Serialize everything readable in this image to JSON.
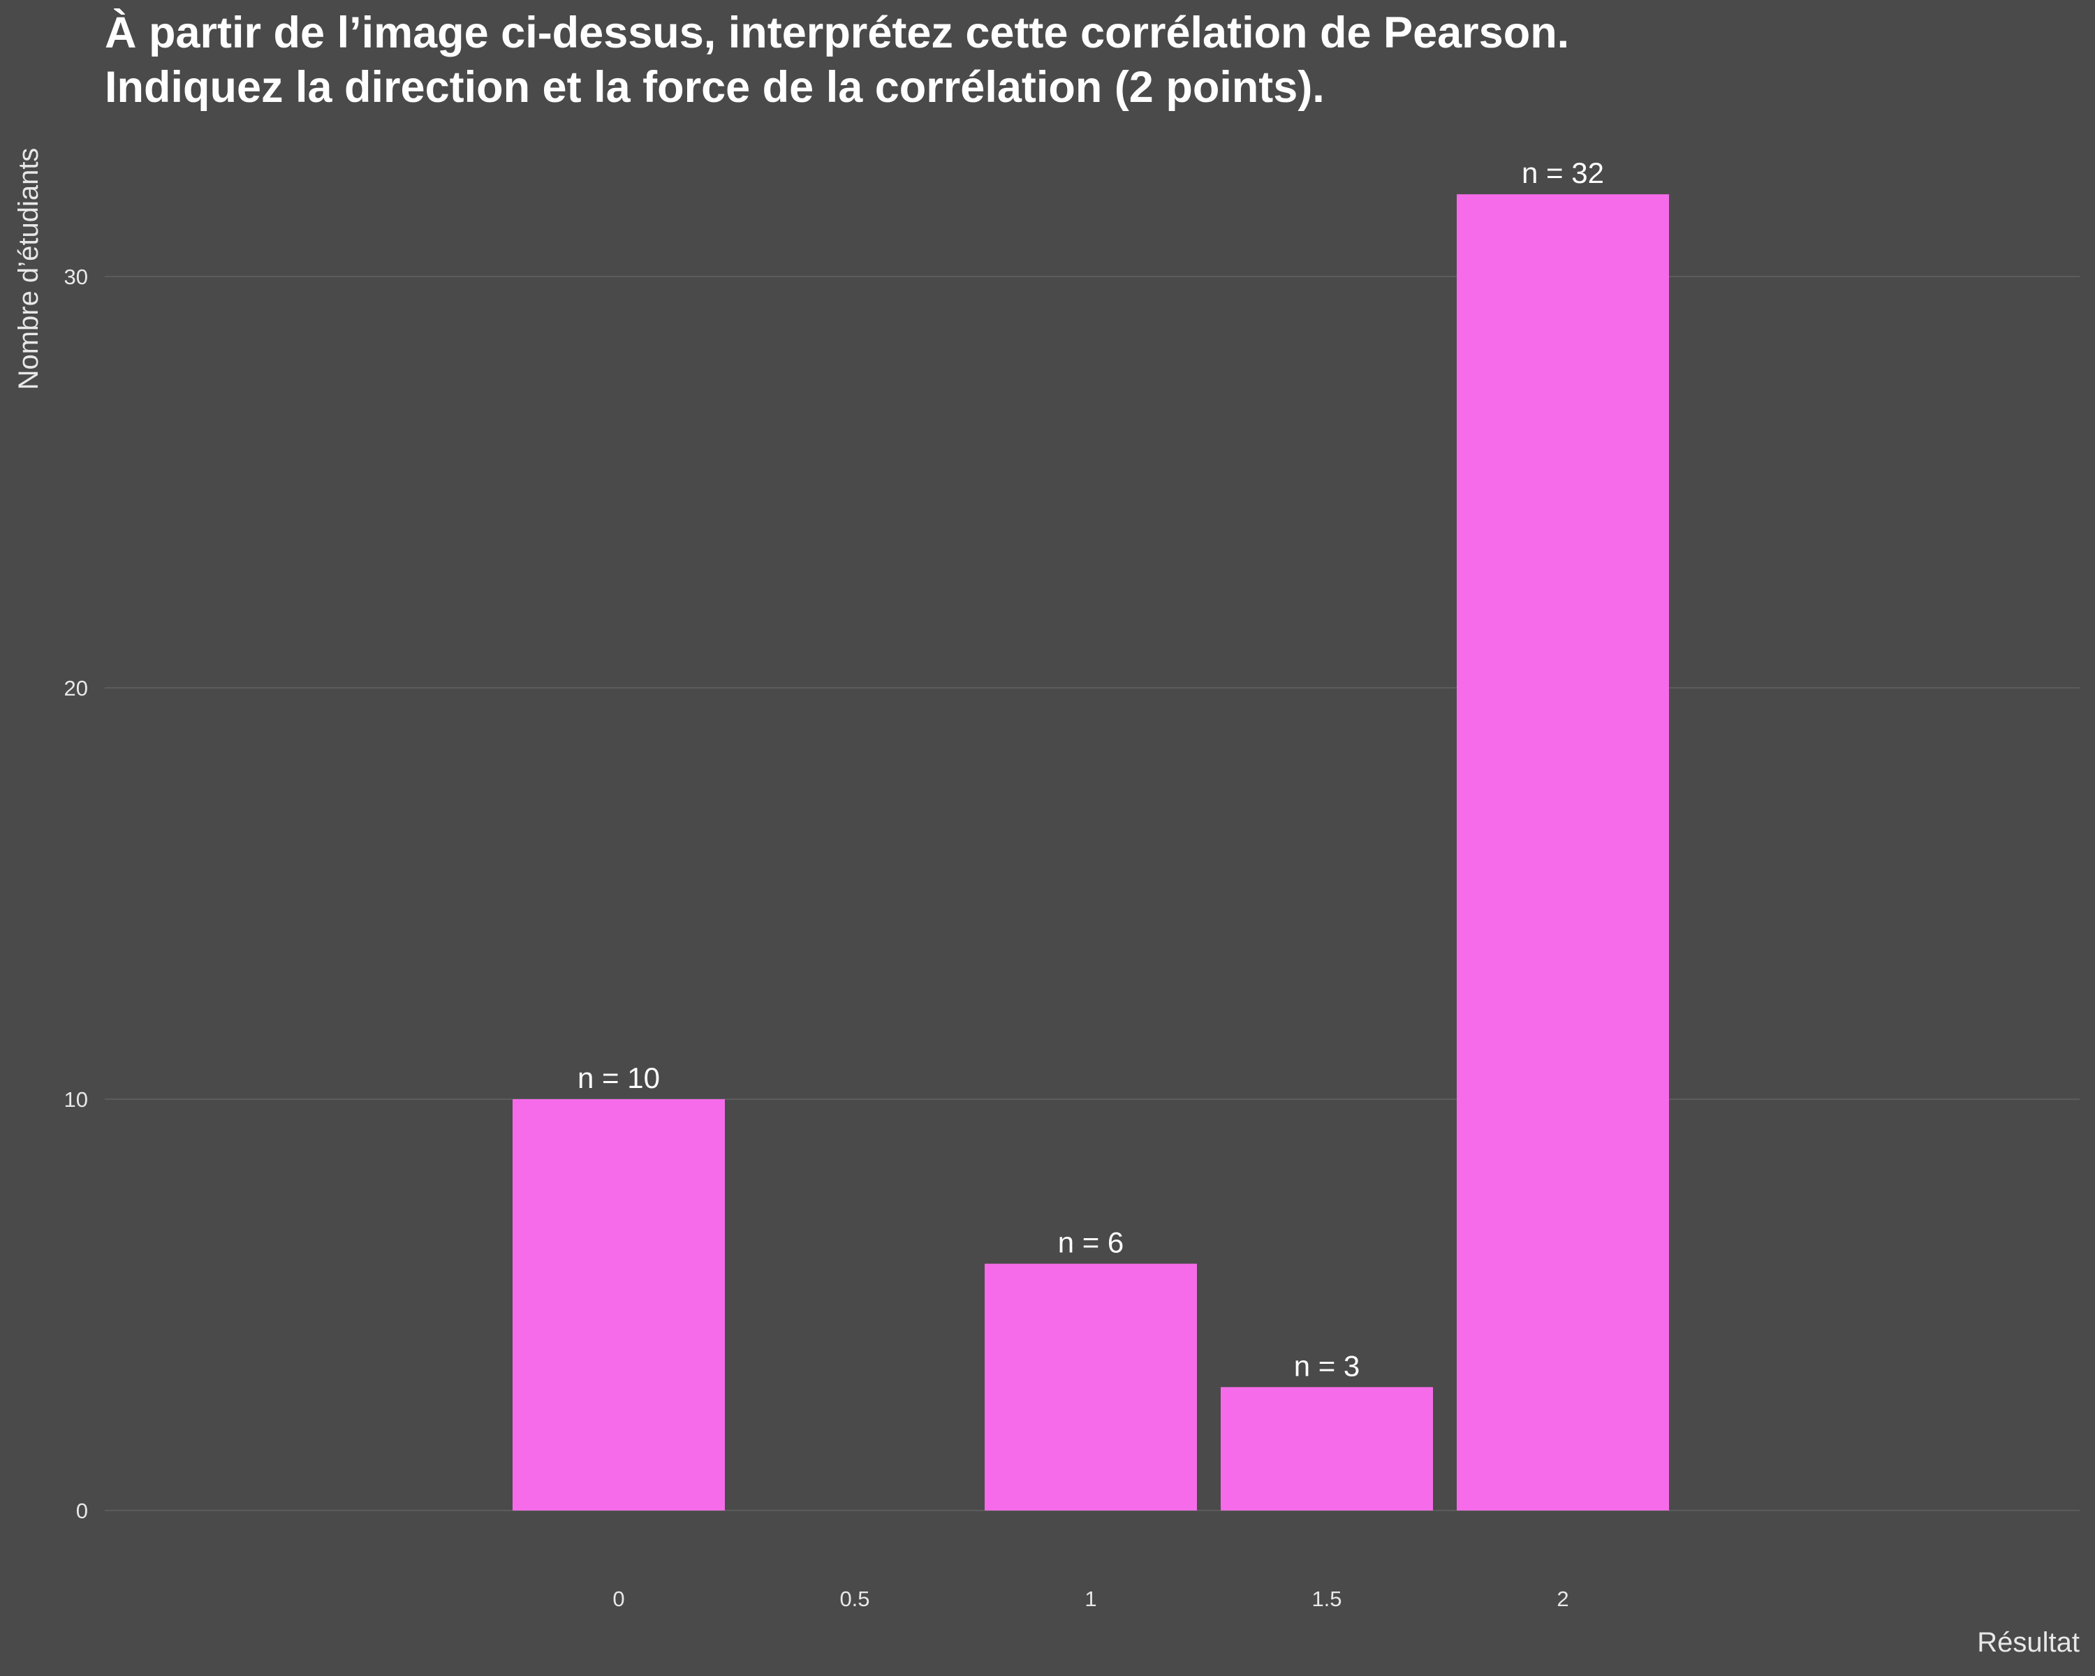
{
  "chart_data": {
    "type": "bar",
    "title": "À partir de l’image ci-dessus, interprétez cette corrélation de Pearson.",
    "subtitle": "Indiquez la direction et la force de la corrélation (2 points).",
    "xlabel": "Résultat",
    "ylabel": "Nombre d’étudiants",
    "categories": [
      "0",
      "0.5",
      "1",
      "1.5",
      "2"
    ],
    "x": [
      0,
      0.5,
      1,
      1.5,
      2
    ],
    "values": [
      10,
      0,
      6,
      3,
      32
    ],
    "data_labels": [
      "n = 10",
      "",
      "n = 6",
      "n = 3",
      "n = 32"
    ],
    "ylim": [
      0,
      33
    ],
    "yticks": [
      0,
      10,
      20,
      30
    ],
    "ytick_labels": [
      "0",
      "10",
      "20",
      "30"
    ],
    "grid": true,
    "legend": "none",
    "colors": {
      "bar": "#f66be9",
      "background": "#4a4a4a",
      "grid": "#5c5c5c",
      "text": "#ffffff"
    }
  }
}
